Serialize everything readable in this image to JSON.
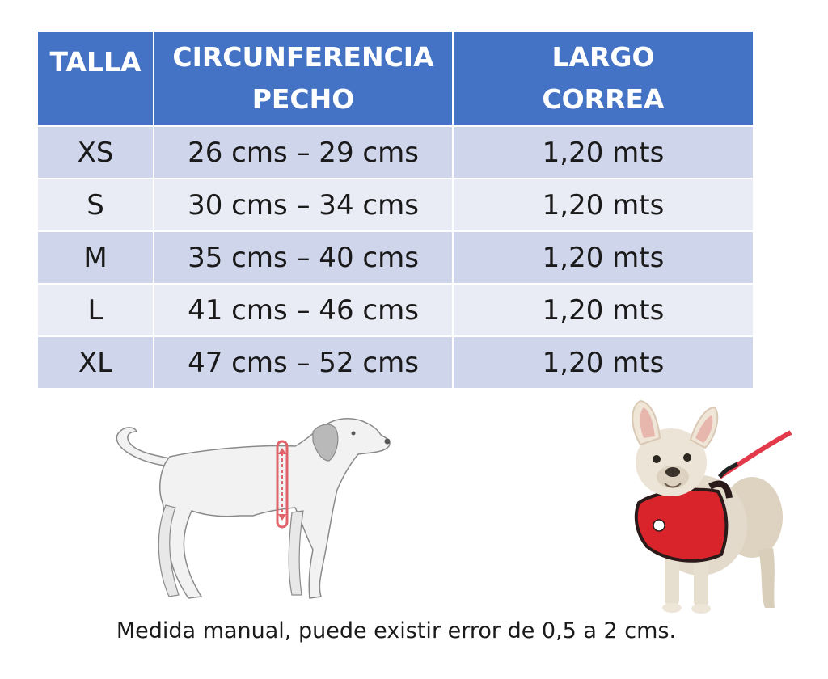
{
  "table": {
    "headers": [
      {
        "line1": "TALLA",
        "line2": ""
      },
      {
        "line1": "CIRCUNFERENCIA",
        "line2": "PECHO"
      },
      {
        "line1": "LARGO",
        "line2": "CORREA"
      }
    ],
    "rows": [
      {
        "size": "XS",
        "chest": "26 cms – 29 cms",
        "leash": "1,20 mts"
      },
      {
        "size": "S",
        "chest": "30 cms – 34 cms",
        "leash": "1,20 mts"
      },
      {
        "size": "M",
        "chest": "35 cms – 40 cms",
        "leash": "1,20 mts"
      },
      {
        "size": "L",
        "chest": "41 cms – 46 cms",
        "leash": "1,20 mts"
      },
      {
        "size": "XL",
        "chest": "47 cms – 52 cms",
        "leash": "1,20 mts"
      }
    ]
  },
  "note": "Medida manual, puede existir error de 0,5 a 2 cms.",
  "colors": {
    "header_bg": "#4472c4",
    "row_odd": "#cfd5ea",
    "row_even": "#e9ebf5",
    "measure_line": "#e0626a",
    "harness_red": "#d8242a"
  },
  "icons": {
    "diagram": "dog-chest-measurement-diagram",
    "photo": "french-bulldog-harness-photo"
  }
}
